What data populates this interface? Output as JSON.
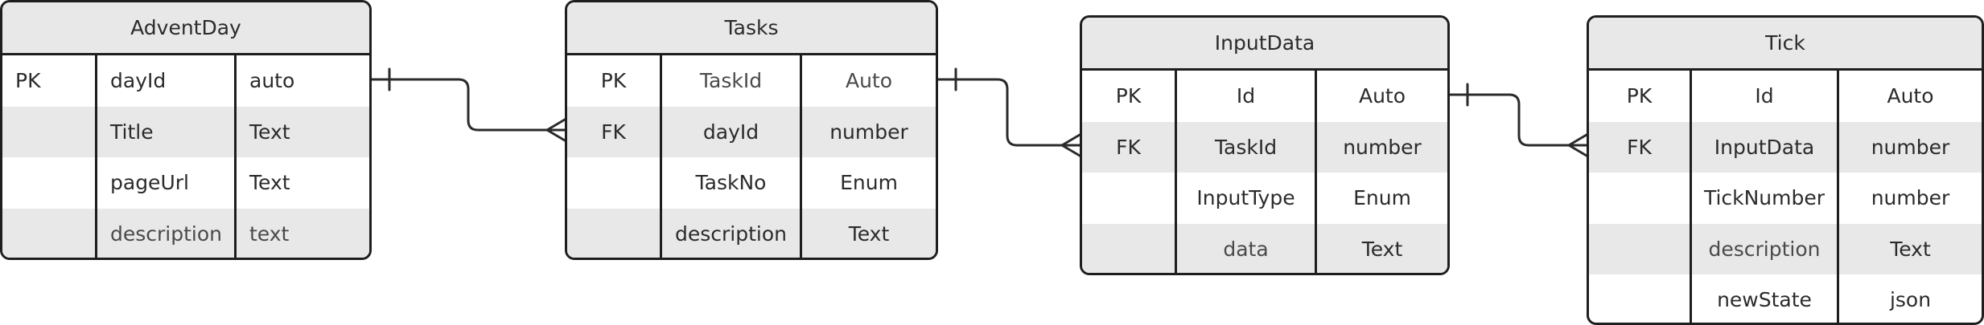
{
  "entities": [
    {
      "name": "AdventDay",
      "align": "left",
      "rows": [
        {
          "key": "PK",
          "field": "dayId",
          "type": "auto"
        },
        {
          "key": "",
          "field": "Title",
          "type": "Text"
        },
        {
          "key": "",
          "field": "pageUrl",
          "type": "Text"
        },
        {
          "key": "",
          "field": "description",
          "type": "text"
        }
      ]
    },
    {
      "name": "Tasks",
      "align": "center",
      "rows": [
        {
          "key": "PK",
          "field": "TaskId",
          "type": "Auto"
        },
        {
          "key": "FK",
          "field": "dayId",
          "type": "number"
        },
        {
          "key": "",
          "field": "TaskNo",
          "type": "Enum"
        },
        {
          "key": "",
          "field": "description",
          "type": "Text"
        }
      ]
    },
    {
      "name": "InputData",
      "align": "center",
      "rows": [
        {
          "key": "PK",
          "field": "Id",
          "type": "Auto"
        },
        {
          "key": "FK",
          "field": "TaskId",
          "type": "number"
        },
        {
          "key": "",
          "field": "InputType",
          "type": "Enum"
        },
        {
          "key": "",
          "field": "data",
          "type": "Text"
        }
      ]
    },
    {
      "name": "Tick",
      "align": "center",
      "rows": [
        {
          "key": "PK",
          "field": "Id",
          "type": "Auto"
        },
        {
          "key": "FK",
          "field": "InputData",
          "type": "number"
        },
        {
          "key": "",
          "field": "TickNumber",
          "type": "number"
        },
        {
          "key": "",
          "field": "description",
          "type": "Text"
        },
        {
          "key": "",
          "field": "newState",
          "type": "json"
        }
      ]
    }
  ],
  "relationships": [
    {
      "from": "AdventDay.dayId",
      "to": "Tasks.dayId",
      "from_end": "one",
      "to_end": "many"
    },
    {
      "from": "Tasks.TaskId",
      "to": "InputData.TaskId",
      "from_end": "one",
      "to_end": "many"
    },
    {
      "from": "InputData.Id",
      "to": "Tick.InputData",
      "from_end": "one",
      "to_end": "many"
    }
  ]
}
